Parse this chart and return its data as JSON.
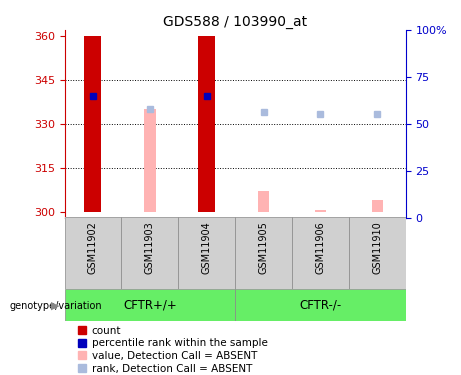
{
  "title": "GDS588 / 103990_at",
  "samples": [
    "GSM11902",
    "GSM11903",
    "GSM11904",
    "GSM11905",
    "GSM11906",
    "GSM11910"
  ],
  "ylim_left": [
    298,
    362
  ],
  "ylim_right": [
    0,
    100
  ],
  "yticks_left": [
    300,
    315,
    330,
    345,
    360
  ],
  "yticks_right": [
    0,
    25,
    50,
    75,
    100
  ],
  "ytick_labels_right": [
    "0",
    "25",
    "50",
    "75",
    "100%"
  ],
  "left_axis_color": "#cc0000",
  "right_axis_color": "#0000cc",
  "bar_bottom": 300,
  "count_bars": {
    "GSM11902": 360,
    "GSM11903": null,
    "GSM11904": 360,
    "GSM11905": null,
    "GSM11906": null,
    "GSM11910": null
  },
  "absent_value_bars": {
    "GSM11902": null,
    "GSM11903": 335,
    "GSM11904": null,
    "GSM11905": 307,
    "GSM11906": 300.5,
    "GSM11910": 304
  },
  "percentile_rank_present": {
    "GSM11902": 65,
    "GSM11904": 65
  },
  "percentile_rank_absent": {
    "GSM11903": 58,
    "GSM11905": 56,
    "GSM11906": 55,
    "GSM11910": 55
  },
  "count_color": "#cc0000",
  "absent_value_color": "#ffb3b3",
  "percentile_present_color": "#0000bb",
  "percentile_absent_color": "#aabbdd",
  "group1_label": "CFTR+/+",
  "group2_label": "CFTR-/-",
  "group1_samples": [
    0,
    1,
    2
  ],
  "group2_samples": [
    3,
    4,
    5
  ],
  "green_color": "#66ee66",
  "gray_color": "#d0d0d0",
  "geno_label": "genotype/variation",
  "legend_items": [
    {
      "label": "count",
      "color": "#cc0000"
    },
    {
      "label": "percentile rank within the sample",
      "color": "#0000bb"
    },
    {
      "label": "value, Detection Call = ABSENT",
      "color": "#ffb3b3"
    },
    {
      "label": "rank, Detection Call = ABSENT",
      "color": "#aabbdd"
    }
  ]
}
